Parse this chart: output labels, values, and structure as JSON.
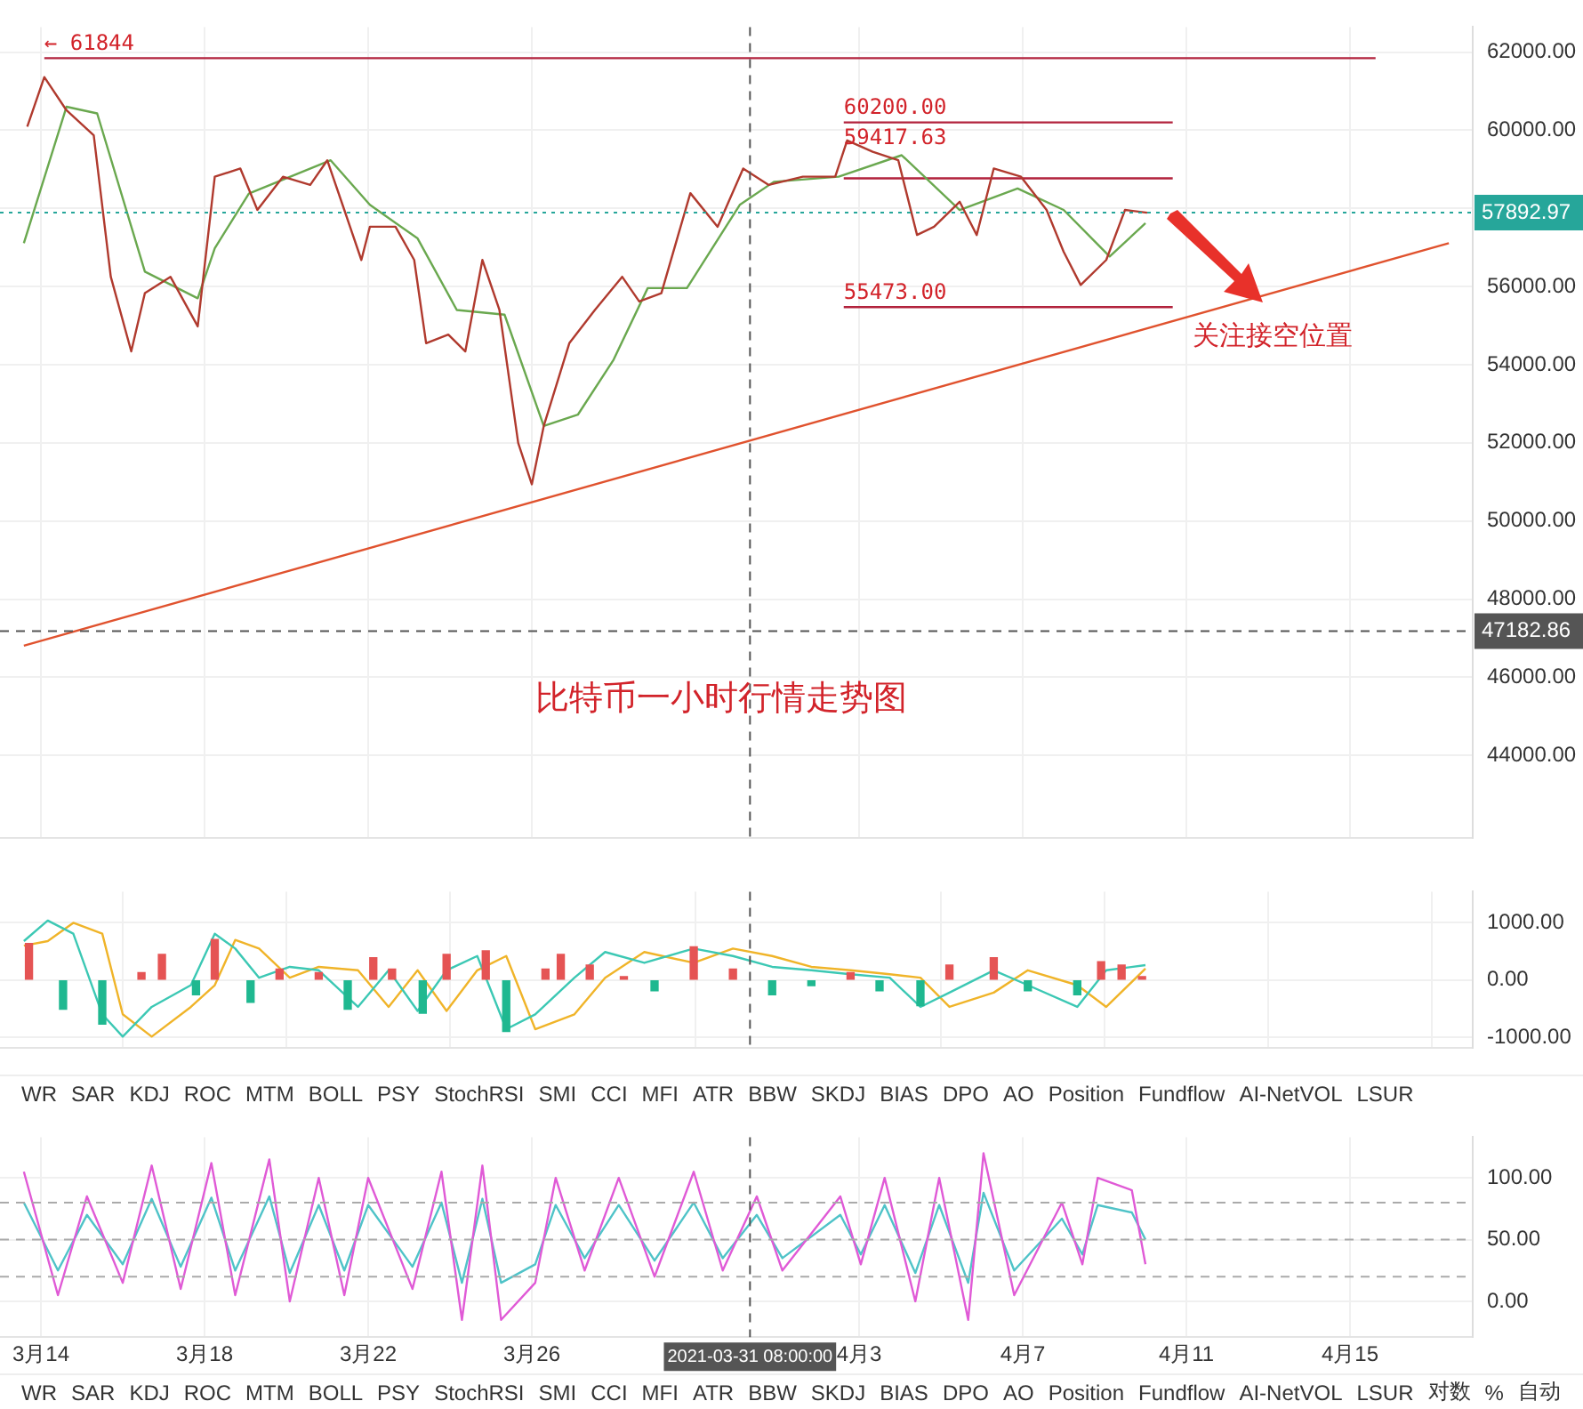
{
  "chart_data": [
    {
      "type": "line",
      "title": "比特币一小时行情走势图",
      "tick_labels": "y",
      "grid": true,
      "xlim": [
        "2021-03-13",
        "2021-04-18"
      ],
      "xticks": [
        {
          "value": "2021-03-14",
          "label": null
        },
        {
          "value": "2021-03-18",
          "label": null
        },
        {
          "value": "2021-03-22",
          "label": null
        },
        {
          "value": "2021-03-26",
          "label": null
        },
        {
          "value": "2021-04-03",
          "label": null
        },
        {
          "value": "2021-04-07",
          "label": null
        },
        {
          "value": "2021-04-11",
          "label": null
        },
        {
          "value": "2021-04-15",
          "label": null
        }
      ],
      "ylim": [
        41900,
        62640
      ],
      "yticks": [
        {
          "value": 44000,
          "label": "44000.00"
        },
        {
          "value": 46000,
          "label": "46000.00"
        },
        {
          "value": 48000,
          "label": "48000.00"
        },
        {
          "value": 50000,
          "label": "50000.00"
        },
        {
          "value": 52000,
          "label": "52000.00"
        },
        {
          "value": 54000,
          "label": "54000.00"
        },
        {
          "value": 56000,
          "label": "56000.00"
        },
        {
          "value": 58000,
          "label": null
        },
        {
          "value": 60000,
          "label": "60000.00"
        },
        {
          "value": 62000,
          "label": "62000.00"
        }
      ],
      "series": [
        {
          "color": "#b03a2e",
          "x": [
            "2021-03-13T16:00",
            "2021-03-14T02:00",
            "2021-03-14T15:00",
            "2021-03-15T07:00",
            "2021-03-15T17:00",
            "2021-03-16T05:00",
            "2021-03-16T13:00",
            "2021-03-17T04:00",
            "2021-03-17T20:00",
            "2021-03-18T06:00",
            "2021-03-18T21:00",
            "2021-03-19T07:00",
            "2021-03-19T22:00",
            "2021-03-20T14:00",
            "2021-03-21T00:00",
            "2021-03-21T10:00",
            "2021-03-21T20:00",
            "2021-03-22T01:00",
            "2021-03-22T16:00",
            "2021-03-23T03:00",
            "2021-03-23T10:00",
            "2021-03-23T23:00",
            "2021-03-24T09:00",
            "2021-03-24T19:00",
            "2021-03-25T05:00",
            "2021-03-25T16:00",
            "2021-03-26T00:00",
            "2021-03-26T07:00",
            "2021-03-26T22:00",
            "2021-03-27T13:00",
            "2021-03-28T05:00",
            "2021-03-28T15:00",
            "2021-03-29T04:00",
            "2021-03-29T21:00",
            "2021-03-30T13:00",
            "2021-03-31T04:00",
            "2021-03-31T19:00",
            "2021-04-01T15:00",
            "2021-04-02T10:00",
            "2021-04-02T17:00",
            "2021-04-03T08:00",
            "2021-04-03T23:00",
            "2021-04-04T10:00",
            "2021-04-04T20:00",
            "2021-04-05T11:00",
            "2021-04-05T21:00",
            "2021-04-06T07:00",
            "2021-04-06T23:00",
            "2021-04-07T14:00",
            "2021-04-08T00:00",
            "2021-04-08T10:00",
            "2021-04-09T01:00",
            "2021-04-09T12:00",
            "2021-04-10T01:00"
          ],
          "values": [
            60090,
            61360,
            60510,
            59870,
            56250,
            54340,
            55830,
            56250,
            54980,
            58810,
            59020,
            57960,
            58810,
            58600,
            59230,
            57960,
            56680,
            57530,
            57530,
            56680,
            54550,
            54770,
            54340,
            56680,
            55400,
            52000,
            50940,
            52430,
            54550,
            55400,
            56250,
            55620,
            55830,
            58390,
            57530,
            59020,
            58600,
            58810,
            58810,
            59740,
            59450,
            59230,
            57320,
            57530,
            58170,
            57320,
            59020,
            58810,
            57960,
            56890,
            56040,
            56680,
            57960,
            57890
          ]
        },
        {
          "color": "#6aa84f",
          "x": [
            "2021-03-13T14:00",
            "2021-03-14T15:00",
            "2021-03-15T09:00",
            "2021-03-16T13:00",
            "2021-03-17T20:00",
            "2021-03-18T06:00",
            "2021-03-19T02:00",
            "2021-03-21T02:00",
            "2021-03-22T01:00",
            "2021-03-23T05:00",
            "2021-03-24T04:00",
            "2021-03-25T08:00",
            "2021-03-26T07:00",
            "2021-03-27T03:00",
            "2021-03-28T00:00",
            "2021-03-28T20:00",
            "2021-03-29T19:00",
            "2021-03-31T02:00",
            "2021-03-31T22:00",
            "2021-04-02T12:00",
            "2021-04-04T01:00",
            "2021-04-05T11:00",
            "2021-04-06T21:00",
            "2021-04-08T00:00",
            "2021-04-09T03:00",
            "2021-04-10T00:00"
          ],
          "values": [
            57110,
            60600,
            60430,
            56380,
            55700,
            56980,
            58380,
            59230,
            58090,
            57230,
            55400,
            55280,
            52430,
            52720,
            54130,
            55960,
            55960,
            58090,
            58680,
            58810,
            59360,
            57960,
            58510,
            57960,
            56770,
            57620
          ]
        },
        {
          "color": "#e0522e",
          "x": [
            "2021-03-13T14:00",
            "2021-04-17T10:00"
          ],
          "values": [
            46810,
            57110
          ]
        },
        {
          "color": "#b2223c",
          "x": [
            "2021-03-14T02:00",
            "2021-04-15T15:00"
          ],
          "values": [
            61844,
            61844
          ]
        },
        {
          "color": "#b2223c",
          "x": [
            "2021-04-02T15:00",
            "2021-04-10T16:00"
          ],
          "values": [
            60200,
            60200
          ]
        },
        {
          "color": "#b2223c",
          "x": [
            "2021-04-02T15:00",
            "2021-04-10T16:00"
          ],
          "values": [
            58770,
            58770
          ]
        },
        {
          "color": "#b2223c",
          "x": [
            "2021-04-02T15:00",
            "2021-04-10T16:00"
          ],
          "values": [
            55473,
            55473
          ]
        }
      ],
      "ref_lines": [
        {
          "axis": "y",
          "value": 57892.97,
          "label": "57892.97",
          "color": "#26a69a",
          "line_style": "dotted"
        },
        {
          "axis": "y",
          "value": 47182.86,
          "label": "47182.86",
          "color": "#555555",
          "line_style": "dashed"
        },
        {
          "axis": "x",
          "value": "2021-03-31T08:00",
          "label": null,
          "color": "#555555",
          "line_style": "dashed"
        }
      ],
      "annotations": [
        {
          "text": "← 61844",
          "x": "2021-03-14T02:00",
          "y": 61844
        },
        {
          "text": "60200.00",
          "x": "2021-04-02T15:00",
          "y": 60200
        },
        {
          "text": "59417.63",
          "x": "2021-04-02T15:00",
          "y": 59417.63
        },
        {
          "text": "55473.00",
          "x": "2021-04-02T15:00",
          "y": 55473
        },
        {
          "text": "关注接空位置",
          "x": "2021-04-12T14:00",
          "y": 55680
        }
      ]
    },
    {
      "type": "line",
      "tick_labels": "y",
      "grid": true,
      "xlim": [
        "2021-03-13",
        "2021-04-18"
      ],
      "xticks": [
        {
          "value": "2021-03-14",
          "label": null
        },
        {
          "value": "2021-03-18",
          "label": null
        },
        {
          "value": "2021-03-22",
          "label": null
        },
        {
          "value": "2021-03-26",
          "label": null
        },
        {
          "value": "2021-04-03",
          "label": null
        },
        {
          "value": "2021-04-07",
          "label": null
        },
        {
          "value": "2021-04-11",
          "label": null
        },
        {
          "value": "2021-04-15",
          "label": null
        }
      ],
      "ylim": [
        -1180,
        1545
      ],
      "yticks": [
        {
          "value": -1000,
          "label": "-1000.00"
        },
        {
          "value": 0,
          "label": "0.00"
        },
        {
          "value": 1000,
          "label": "1000.00"
        }
      ],
      "series": [
        {
          "type": "bar",
          "x": [
            "2021-03-13T17:00",
            "2021-03-14T13:00",
            "2021-03-15T12:00",
            "2021-03-16T11:00",
            "2021-03-16T23:00",
            "2021-03-17T19:00",
            "2021-03-18T06:00",
            "2021-03-19T03:00",
            "2021-03-19T20:00",
            "2021-03-20T19:00",
            "2021-03-21T12:00",
            "2021-03-22T03:00",
            "2021-03-22T14:00",
            "2021-03-23T08:00",
            "2021-03-23T22:00",
            "2021-03-24T21:00",
            "2021-03-25T09:00",
            "2021-03-26T08:00",
            "2021-03-26T17:00",
            "2021-03-27T10:00",
            "2021-03-28T06:00",
            "2021-03-29T00:00",
            "2021-03-29T23:00",
            "2021-03-30T22:00",
            "2021-03-31T21:00",
            "2021-04-01T20:00",
            "2021-04-02T19:00",
            "2021-04-03T12:00",
            "2021-04-04T12:00",
            "2021-04-05T05:00",
            "2021-04-06T07:00",
            "2021-04-07T03:00",
            "2021-04-08T08:00",
            "2021-04-08T22:00",
            "2021-04-09T10:00",
            "2021-04-09T22:00"
          ],
          "values": [
            640,
            -510,
            -770,
            130,
            450,
            -260,
            710,
            -390,
            190,
            130,
            -510,
            390,
            190,
            -580,
            450,
            510,
            -900,
            190,
            450,
            260,
            60,
            -190,
            580,
            190,
            -260,
            -100,
            130,
            -190,
            -450,
            260,
            390,
            -190,
            -260,
            320,
            260,
            60
          ],
          "colors": [
            "#e55454",
            "#1fb890",
            "#1fb890",
            "#e55454",
            "#e55454",
            "#1fb890",
            "#e55454",
            "#1fb890",
            "#e55454",
            "#e55454",
            "#1fb890",
            "#e55454",
            "#e55454",
            "#1fb890",
            "#e55454",
            "#e55454",
            "#1fb890",
            "#e55454",
            "#e55454",
            "#e55454",
            "#e55454",
            "#1fb890",
            "#e55454",
            "#e55454",
            "#1fb890",
            "#1fb890",
            "#e55454",
            "#1fb890",
            "#1fb890",
            "#e55454",
            "#e55454",
            "#1fb890",
            "#1fb890",
            "#e55454",
            "#e55454",
            "#e55454"
          ]
        },
        {
          "color": "#3cc8b4",
          "x": [
            "2021-03-13T14:00",
            "2021-03-14T04:00",
            "2021-03-14T19:00",
            "2021-03-15T12:00",
            "2021-03-16T00:00",
            "2021-03-16T17:00",
            "2021-03-17T16:00",
            "2021-03-18T06:00",
            "2021-03-18T18:00",
            "2021-03-19T08:00",
            "2021-03-20T02:00",
            "2021-03-20T19:00",
            "2021-03-21T18:00",
            "2021-03-22T12:00",
            "2021-03-23T05:00",
            "2021-03-23T22:00",
            "2021-03-24T16:00",
            "2021-03-25T09:00",
            "2021-03-26T02:00",
            "2021-03-27T01:00",
            "2021-03-27T19:00",
            "2021-03-28T18:00",
            "2021-03-29T23:00",
            "2021-03-30T22:00",
            "2021-03-31T21:00",
            "2021-04-01T20:00",
            "2021-04-02T19:00",
            "2021-04-03T18:00",
            "2021-04-04T12:00",
            "2021-04-05T05:00",
            "2021-04-06T07:00",
            "2021-04-07T03:00",
            "2021-04-08T08:00",
            "2021-04-09T01:00",
            "2021-04-10T00:00"
          ],
          "values": [
            680,
            1040,
            810,
            -600,
            -990,
            -470,
            -90,
            810,
            550,
            40,
            230,
            170,
            -470,
            170,
            -540,
            170,
            420,
            -860,
            -600,
            40,
            490,
            300,
            550,
            420,
            230,
            170,
            100,
            40,
            -470,
            -220,
            170,
            -90,
            -470,
            170,
            260
          ]
        },
        {
          "color": "#f0b429",
          "x": [
            "2021-03-13T14:00",
            "2021-03-14T04:00",
            "2021-03-14T19:00",
            "2021-03-15T12:00",
            "2021-03-16T00:00",
            "2021-03-16T17:00",
            "2021-03-17T16:00",
            "2021-03-18T06:00",
            "2021-03-18T18:00",
            "2021-03-19T08:00",
            "2021-03-20T02:00",
            "2021-03-20T19:00",
            "2021-03-21T18:00",
            "2021-03-22T12:00",
            "2021-03-23T05:00",
            "2021-03-23T22:00",
            "2021-03-24T16:00",
            "2021-03-25T09:00",
            "2021-03-26T02:00",
            "2021-03-27T01:00",
            "2021-03-27T19:00",
            "2021-03-28T18:00",
            "2021-03-29T23:00",
            "2021-03-30T22:00",
            "2021-03-31T21:00",
            "2021-04-01T20:00",
            "2021-04-02T19:00",
            "2021-04-03T18:00",
            "2021-04-04T12:00",
            "2021-04-05T05:00",
            "2021-04-06T07:00",
            "2021-04-07T03:00",
            "2021-04-08T08:00",
            "2021-04-09T01:00",
            "2021-04-10T00:00"
          ],
          "values": [
            600,
            680,
            1000,
            810,
            -600,
            -990,
            -470,
            -90,
            700,
            550,
            40,
            230,
            170,
            -470,
            170,
            -540,
            170,
            420,
            -860,
            -600,
            40,
            490,
            300,
            550,
            420,
            230,
            170,
            100,
            40,
            -470,
            -220,
            170,
            -90,
            -470,
            200
          ]
        }
      ],
      "ref_lines": [
        {
          "axis": "x",
          "value": "2021-03-31T08:00",
          "label": null,
          "color": "#555555",
          "line_style": "dashed"
        }
      ],
      "annotations": [
        "WR",
        "SAR",
        "KDJ",
        "ROC",
        "MTM",
        "BOLL",
        "PSY",
        "StochRSI",
        "SMI",
        "CCI",
        "MFI",
        "ATR",
        "BBW",
        "SKDJ",
        "BIAS",
        "DPO",
        "AO",
        "Position",
        "Fundflow",
        "AI-NetVOL",
        "LSUR"
      ]
    },
    {
      "type": "line",
      "grid": true,
      "xlim": [
        "2021-03-13",
        "2021-04-18"
      ],
      "xticks": [
        {
          "value": "2021-03-14",
          "label": "3月14"
        },
        {
          "value": "2021-03-18",
          "label": "3月18"
        },
        {
          "value": "2021-03-22",
          "label": "3月22"
        },
        {
          "value": "2021-03-26",
          "label": "3月26"
        },
        {
          "value": "2021-04-03",
          "label": "4月3"
        },
        {
          "value": "2021-04-07",
          "label": "4月7"
        },
        {
          "value": "2021-04-11",
          "label": "4月11"
        },
        {
          "value": "2021-04-15",
          "label": "4月15"
        }
      ],
      "ylim": [
        -29,
        133
      ],
      "yticks": [
        {
          "value": 0,
          "label": "0.00"
        },
        {
          "value": 50,
          "label": "50.00"
        },
        {
          "value": 100,
          "label": "100.00"
        }
      ],
      "series": [
        {
          "color": "#e05ad6",
          "x": [
            "2021-03-13T14:00",
            "2021-03-14T10:00",
            "2021-03-15T03:00",
            "2021-03-16T00:00",
            "2021-03-16T17:00",
            "2021-03-17T10:00",
            "2021-03-18T04:00",
            "2021-03-18T18:00",
            "2021-03-19T14:00",
            "2021-03-20T02:00",
            "2021-03-20T19:00",
            "2021-03-21T10:00",
            "2021-03-22T00:00",
            "2021-03-23T02:00",
            "2021-03-23T19:00",
            "2021-03-24T07:00",
            "2021-03-24T19:00",
            "2021-03-25T06:00",
            "2021-03-26T02:00",
            "2021-03-26T14:00",
            "2021-03-27T07:00",
            "2021-03-28T03:00",
            "2021-03-29T00:00",
            "2021-03-29T23:00",
            "2021-03-30T16:00",
            "2021-03-31T12:00",
            "2021-04-01T03:00",
            "2021-04-02T13:00",
            "2021-04-03T01:00",
            "2021-04-03T15:00",
            "2021-04-04T09:00",
            "2021-04-04T23:00",
            "2021-04-05T16:00",
            "2021-04-06T01:00",
            "2021-04-06T19:00",
            "2021-04-07T23:00",
            "2021-04-08T11:00",
            "2021-04-08T20:00",
            "2021-04-09T16:00",
            "2021-04-10T00:00"
          ],
          "values": [
            105,
            5,
            85,
            15,
            110,
            10,
            112,
            5,
            115,
            0,
            100,
            5,
            100,
            10,
            105,
            -15,
            110,
            -15,
            15,
            100,
            25,
            100,
            20,
            105,
            25,
            85,
            25,
            85,
            30,
            100,
            0,
            100,
            -15,
            120,
            5,
            80,
            30,
            100,
            90,
            30
          ]
        },
        {
          "color": "#4fc3c8",
          "x": [
            "2021-03-13T14:00",
            "2021-03-14T10:00",
            "2021-03-15T03:00",
            "2021-03-16T00:00",
            "2021-03-16T17:00",
            "2021-03-17T10:00",
            "2021-03-18T04:00",
            "2021-03-18T18:00",
            "2021-03-19T14:00",
            "2021-03-20T02:00",
            "2021-03-20T19:00",
            "2021-03-21T10:00",
            "2021-03-22T00:00",
            "2021-03-23T02:00",
            "2021-03-23T19:00",
            "2021-03-24T07:00",
            "2021-03-24T19:00",
            "2021-03-25T06:00",
            "2021-03-26T02:00",
            "2021-03-26T14:00",
            "2021-03-27T07:00",
            "2021-03-28T03:00",
            "2021-03-29T00:00",
            "2021-03-29T23:00",
            "2021-03-30T16:00",
            "2021-03-31T12:00",
            "2021-04-01T03:00",
            "2021-04-02T13:00",
            "2021-04-03T01:00",
            "2021-04-03T15:00",
            "2021-04-04T09:00",
            "2021-04-04T23:00",
            "2021-04-05T16:00",
            "2021-04-06T01:00",
            "2021-04-06T19:00",
            "2021-04-07T23:00",
            "2021-04-08T11:00",
            "2021-04-08T20:00",
            "2021-04-09T16:00",
            "2021-04-10T00:00"
          ],
          "values": [
            80,
            25,
            70,
            30,
            83,
            28,
            84,
            25,
            85,
            23,
            78,
            25,
            78,
            28,
            80,
            15,
            83,
            15,
            30,
            78,
            35,
            78,
            33,
            80,
            35,
            70,
            35,
            70,
            38,
            78,
            23,
            78,
            15,
            88,
            25,
            67,
            38,
            78,
            72,
            50
          ]
        }
      ],
      "ref_lines": [
        {
          "axis": "y",
          "value": 80,
          "label": null,
          "color": "#aaaaaa",
          "line_style": "dashed"
        },
        {
          "axis": "y",
          "value": 50,
          "label": null,
          "color": "#aaaaaa",
          "line_style": "dashed"
        },
        {
          "axis": "y",
          "value": 20,
          "label": null,
          "color": "#aaaaaa",
          "line_style": "dashed"
        },
        {
          "axis": "x",
          "value": "2021-03-31T08:00",
          "label": "2021-03-31 08:00:00",
          "color": "#555555",
          "line_style": "dashed"
        }
      ],
      "annotations": [
        "WR",
        "SAR",
        "KDJ",
        "ROC",
        "MTM",
        "BOLL",
        "PSY",
        "StochRSI",
        "SMI",
        "CCI",
        "MFI",
        "ATR",
        "BBW",
        "SKDJ",
        "BIAS",
        "DPO",
        "AO",
        "Position",
        "Fundflow",
        "AI-NetVOL",
        "LSUR",
        "对数",
        "%",
        "自动"
      ]
    }
  ]
}
